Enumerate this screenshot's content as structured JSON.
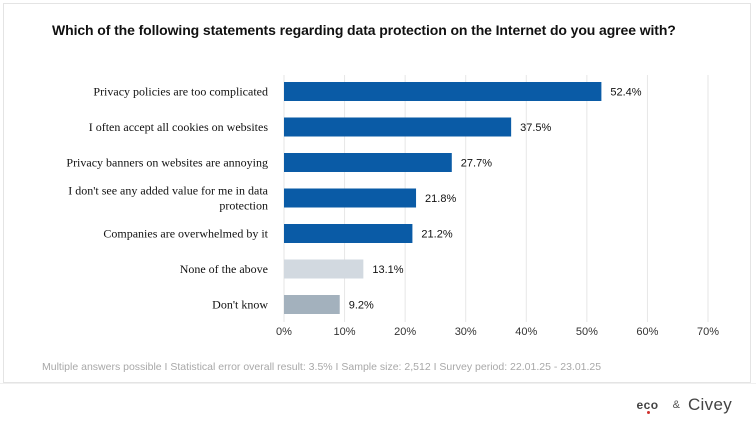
{
  "title": "Which of the following statements regarding data protection on the Internet do you agree with?",
  "chart_data": {
    "type": "bar",
    "orientation": "horizontal",
    "categories": [
      [
        "Privacy policies are too complicated"
      ],
      [
        "I often accept all cookies on websites"
      ],
      [
        "Privacy banners on websites are annoying"
      ],
      [
        "I don't see any added value for me in data",
        "protection"
      ],
      [
        "Companies are overwhelmed by it"
      ],
      [
        "None of the above"
      ],
      [
        "Don't know"
      ]
    ],
    "values": [
      52.4,
      37.5,
      27.7,
      21.8,
      21.2,
      13.1,
      9.2
    ],
    "value_labels": [
      "52.4%",
      "37.5%",
      "27.7%",
      "21.8%",
      "21.2%",
      "13.1%",
      "9.2%"
    ],
    "bar_colors": [
      "#0a5ba6",
      "#0a5ba6",
      "#0a5ba6",
      "#0a5ba6",
      "#0a5ba6",
      "#d2d9e0",
      "#a3b1bd"
    ],
    "xlim": [
      0,
      70
    ],
    "x_ticks": [
      0,
      10,
      20,
      30,
      40,
      50,
      60,
      70
    ],
    "x_tick_labels": [
      "0%",
      "10%",
      "20%",
      "30%",
      "40%",
      "50%",
      "60%",
      "70%"
    ],
    "grid": true
  },
  "footnote": "Multiple answers possible  I  Statistical error overall result: 3.5%  I  Sample size: 2,512  I  Survey period: 22.01.25 - 23.01.25",
  "logos": {
    "eco": "eco",
    "amp": "&",
    "civey": "Civey"
  }
}
